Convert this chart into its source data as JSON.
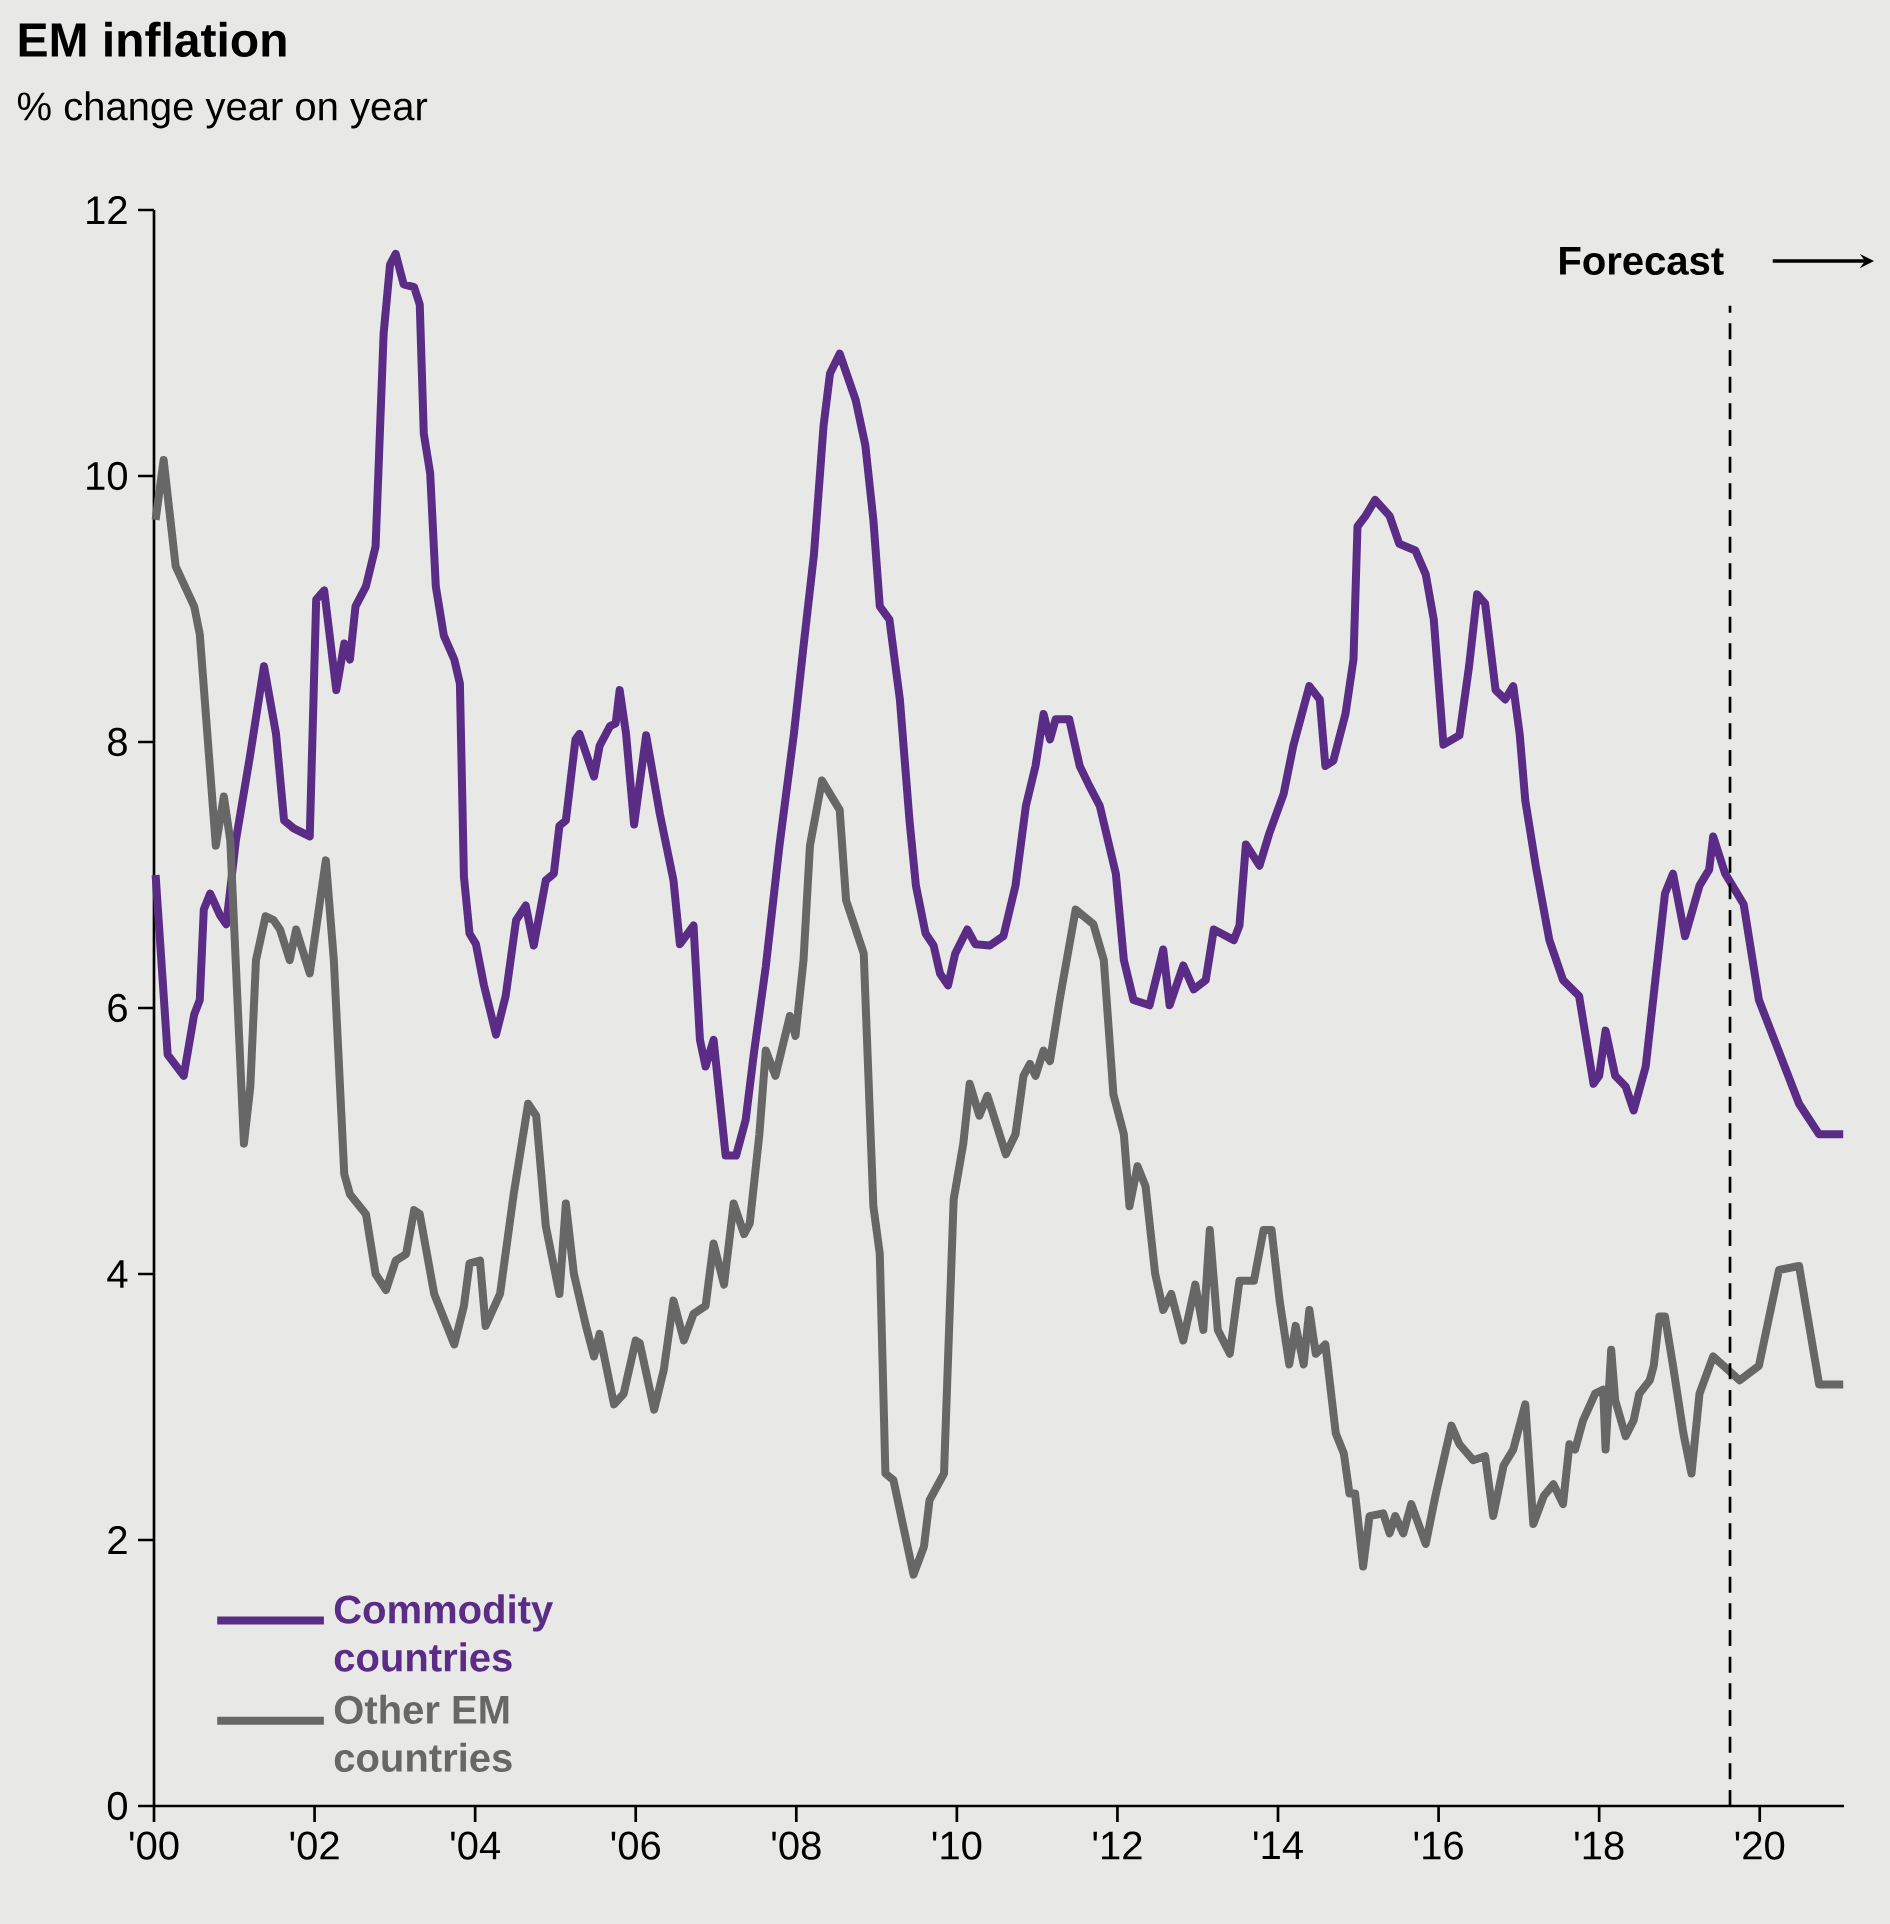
{
  "chart_data": {
    "type": "line",
    "title": "EM inflation",
    "subtitle": "% change year on year",
    "xlim": [
      2000,
      2021.05
    ],
    "xticks": [
      {
        "value": 2000,
        "label": "'00"
      },
      {
        "value": 2002,
        "label": "'02"
      },
      {
        "value": 2004,
        "label": "'04"
      },
      {
        "value": 2006,
        "label": "'06"
      },
      {
        "value": 2008,
        "label": "'08"
      },
      {
        "value": 2010,
        "label": "'10"
      },
      {
        "value": 2012,
        "label": "'12"
      },
      {
        "value": 2014,
        "label": "'14"
      },
      {
        "value": 2016,
        "label": "'16"
      },
      {
        "value": 2018,
        "label": "'18"
      },
      {
        "value": 2020,
        "label": "'20"
      }
    ],
    "ylim": [
      0,
      12
    ],
    "yticks": [
      0,
      2,
      4,
      6,
      8,
      10,
      12
    ],
    "legend": "bottom left",
    "ref_lines": [
      {
        "axis": "x",
        "value": 2019.63,
        "label": "Forecast",
        "line_style": "dashed",
        "color": "#000000"
      }
    ],
    "series": [
      {
        "name": "Commodity countries",
        "color": "#5b2c86",
        "x": [
          2000.02,
          2000.12,
          2000.17,
          2000.37,
          2000.5,
          2000.57,
          2000.62,
          2000.7,
          2000.82,
          2000.9,
          2001.02,
          2001.2,
          2001.37,
          2001.52,
          2001.62,
          2001.74,
          2001.94,
          2002.02,
          2002.12,
          2002.27,
          2002.37,
          2002.44,
          2002.51,
          2002.64,
          2002.76,
          2002.86,
          2002.94,
          2003.01,
          2003.11,
          2003.24,
          2003.31,
          2003.36,
          2003.44,
          2003.51,
          2003.61,
          2003.74,
          2003.81,
          2003.86,
          2003.93,
          2004.01,
          2004.11,
          2004.26,
          2004.38,
          2004.51,
          2004.63,
          2004.73,
          2004.88,
          2004.98,
          2005.05,
          2005.13,
          2005.25,
          2005.3,
          2005.48,
          2005.55,
          2005.68,
          2005.75,
          2005.8,
          2005.88,
          2005.98,
          2006.13,
          2006.3,
          2006.47,
          2006.55,
          2006.72,
          2006.8,
          2006.87,
          2006.97,
          2007.12,
          2007.25,
          2007.37,
          2007.47,
          2007.62,
          2007.79,
          2007.97,
          2008.09,
          2008.22,
          2008.34,
          2008.42,
          2008.54,
          2008.74,
          2008.86,
          2008.96,
          2009.04,
          2009.16,
          2009.29,
          2009.41,
          2009.49,
          2009.61,
          2009.71,
          2009.79,
          2009.89,
          2009.98,
          2010.13,
          2010.23,
          2010.41,
          2010.58,
          2010.73,
          2010.86,
          2010.98,
          2011.08,
          2011.16,
          2011.23,
          2011.4,
          2011.53,
          2011.65,
          2011.78,
          2011.98,
          2012.08,
          2012.2,
          2012.4,
          2012.57,
          2012.65,
          2012.82,
          2012.95,
          2013.1,
          2013.2,
          2013.45,
          2013.52,
          2013.6,
          2013.77,
          2013.89,
          2014.07,
          2014.19,
          2014.39,
          2014.52,
          2014.59,
          2014.69,
          2014.84,
          2014.94,
          2014.99,
          2015.09,
          2015.21,
          2015.39,
          2015.51,
          2015.71,
          2015.84,
          2015.94,
          2016.06,
          2016.26,
          2016.38,
          2016.48,
          2016.58,
          2016.71,
          2016.83,
          2016.93,
          2017.01,
          2017.08,
          2017.21,
          2017.38,
          2017.55,
          2017.75,
          2017.93,
          2018.0,
          2018.08,
          2018.2,
          2018.33,
          2018.43,
          2018.58,
          2018.7,
          2018.82,
          2018.92,
          2019.07,
          2019.25,
          2019.37,
          2019.42,
          2019.57,
          2019.8,
          2019.99,
          2020.49,
          2020.74,
          2021.04
        ],
        "values": [
          7.0,
          6.1,
          5.65,
          5.49,
          5.95,
          6.06,
          6.74,
          6.86,
          6.7,
          6.63,
          7.26,
          7.91,
          8.57,
          8.06,
          7.41,
          7.35,
          7.29,
          9.07,
          9.14,
          8.39,
          8.74,
          8.62,
          9.02,
          9.17,
          9.47,
          11.07,
          11.59,
          11.67,
          11.44,
          11.42,
          11.29,
          10.32,
          10.02,
          9.17,
          8.8,
          8.62,
          8.44,
          6.99,
          6.56,
          6.48,
          6.17,
          5.8,
          6.09,
          6.66,
          6.77,
          6.47,
          6.96,
          7.01,
          7.37,
          7.41,
          8.02,
          8.06,
          7.74,
          7.97,
          8.12,
          8.14,
          8.39,
          8.06,
          7.38,
          8.05,
          7.46,
          6.96,
          6.48,
          6.62,
          5.76,
          5.56,
          5.76,
          4.89,
          4.89,
          5.16,
          5.65,
          6.31,
          7.22,
          8.06,
          8.72,
          9.41,
          10.38,
          10.77,
          10.92,
          10.57,
          10.23,
          9.67,
          9.02,
          8.92,
          8.32,
          7.41,
          6.92,
          6.56,
          6.47,
          6.26,
          6.17,
          6.41,
          6.59,
          6.48,
          6.47,
          6.54,
          6.92,
          7.52,
          7.82,
          8.21,
          8.02,
          8.17,
          8.17,
          7.82,
          7.67,
          7.52,
          7.01,
          6.36,
          6.06,
          6.02,
          6.44,
          6.02,
          6.32,
          6.14,
          6.21,
          6.59,
          6.51,
          6.62,
          7.23,
          7.07,
          7.31,
          7.61,
          7.97,
          8.42,
          8.32,
          7.82,
          7.86,
          8.21,
          8.62,
          9.62,
          9.7,
          9.82,
          9.7,
          9.49,
          9.44,
          9.26,
          8.92,
          7.98,
          8.05,
          8.57,
          9.11,
          9.04,
          8.39,
          8.32,
          8.42,
          8.06,
          7.56,
          7.07,
          6.51,
          6.21,
          6.09,
          5.43,
          5.49,
          5.83,
          5.49,
          5.41,
          5.23,
          5.56,
          6.21,
          6.86,
          7.01,
          6.54,
          6.92,
          7.04,
          7.29,
          7.01,
          6.78,
          6.06,
          5.28,
          5.05,
          5.05
        ]
      },
      {
        "name": "Other EM countries",
        "color": "#676767",
        "x": [
          2000.02,
          2000.12,
          2000.27,
          2000.5,
          2000.57,
          2000.77,
          2000.87,
          2000.95,
          2001.12,
          2001.2,
          2001.27,
          2001.39,
          2001.49,
          2001.57,
          2001.69,
          2001.77,
          2001.94,
          2002.14,
          2002.24,
          2002.37,
          2002.44,
          2002.64,
          2002.76,
          2002.89,
          2003.01,
          2003.14,
          2003.24,
          2003.31,
          2003.49,
          2003.74,
          2003.86,
          2003.93,
          2004.06,
          2004.13,
          2004.31,
          2004.48,
          2004.66,
          2004.76,
          2004.88,
          2005.05,
          2005.13,
          2005.23,
          2005.38,
          2005.48,
          2005.55,
          2005.73,
          2005.85,
          2006.0,
          2006.05,
          2006.23,
          2006.35,
          2006.47,
          2006.6,
          2006.72,
          2006.87,
          2006.97,
          2007.1,
          2007.22,
          2007.35,
          2007.42,
          2007.54,
          2007.62,
          2007.74,
          2007.92,
          2007.99,
          2008.09,
          2008.17,
          2008.32,
          2008.54,
          2008.62,
          2008.84,
          2008.96,
          2009.04,
          2009.11,
          2009.21,
          2009.46,
          2009.59,
          2009.66,
          2009.84,
          2009.96,
          2010.08,
          2010.16,
          2010.28,
          2010.38,
          2010.61,
          2010.73,
          2010.83,
          2010.91,
          2010.98,
          2011.08,
          2011.16,
          2011.28,
          2011.48,
          2011.7,
          2011.83,
          2011.95,
          2012.08,
          2012.15,
          2012.25,
          2012.35,
          2012.47,
          2012.57,
          2012.67,
          2012.82,
          2012.97,
          2013.07,
          2013.15,
          2013.25,
          2013.4,
          2013.52,
          2013.7,
          2013.82,
          2013.92,
          2014.02,
          2014.14,
          2014.22,
          2014.32,
          2014.39,
          2014.47,
          2014.59,
          2014.72,
          2014.82,
          2014.89,
          2014.96,
          2015.06,
          2015.14,
          2015.31,
          2015.39,
          2015.46,
          2015.56,
          2015.66,
          2015.84,
          2015.96,
          2016.16,
          2016.26,
          2016.43,
          2016.58,
          2016.68,
          2016.81,
          2016.93,
          2017.08,
          2017.18,
          2017.31,
          2017.43,
          2017.55,
          2017.63,
          2017.7,
          2017.8,
          2017.95,
          2018.05,
          2018.08,
          2018.15,
          2018.2,
          2018.33,
          2018.43,
          2018.5,
          2018.63,
          2018.68,
          2018.75,
          2018.82,
          2018.92,
          2019.05,
          2019.15,
          2019.25,
          2019.42,
          2019.75,
          2019.99,
          2020.24,
          2020.49,
          2020.74,
          2021.04
        ],
        "values": [
          9.67,
          10.12,
          9.32,
          9.02,
          8.81,
          7.22,
          7.59,
          7.26,
          4.98,
          5.41,
          6.36,
          6.69,
          6.66,
          6.59,
          6.36,
          6.59,
          6.26,
          7.11,
          6.36,
          4.75,
          4.6,
          4.45,
          4.0,
          3.88,
          4.1,
          4.15,
          4.48,
          4.45,
          3.85,
          3.47,
          3.76,
          4.08,
          4.1,
          3.61,
          3.85,
          4.6,
          5.28,
          5.19,
          4.36,
          3.85,
          4.53,
          4.0,
          3.61,
          3.38,
          3.55,
          3.02,
          3.1,
          3.5,
          3.48,
          2.98,
          3.28,
          3.8,
          3.5,
          3.7,
          3.76,
          4.23,
          3.92,
          4.53,
          4.3,
          4.38,
          5.05,
          5.68,
          5.49,
          5.94,
          5.79,
          6.36,
          7.22,
          7.71,
          7.49,
          6.81,
          6.41,
          4.51,
          4.15,
          2.5,
          2.45,
          1.74,
          1.95,
          2.3,
          2.5,
          4.56,
          4.98,
          5.43,
          5.19,
          5.34,
          4.9,
          5.05,
          5.49,
          5.58,
          5.49,
          5.68,
          5.6,
          6.06,
          6.74,
          6.63,
          6.36,
          5.35,
          5.05,
          4.51,
          4.81,
          4.66,
          4.0,
          3.73,
          3.85,
          3.5,
          3.92,
          3.58,
          4.33,
          3.58,
          3.4,
          3.95,
          3.95,
          4.33,
          4.33,
          3.8,
          3.32,
          3.61,
          3.32,
          3.73,
          3.4,
          3.47,
          2.8,
          2.65,
          2.35,
          2.35,
          1.8,
          2.18,
          2.2,
          2.05,
          2.18,
          2.05,
          2.27,
          1.97,
          2.33,
          2.86,
          2.72,
          2.6,
          2.63,
          2.18,
          2.56,
          2.68,
          3.02,
          2.12,
          2.33,
          2.42,
          2.27,
          2.72,
          2.68,
          2.9,
          3.1,
          3.13,
          2.68,
          3.43,
          3.05,
          2.78,
          2.9,
          3.1,
          3.2,
          3.31,
          3.68,
          3.68,
          3.31,
          2.8,
          2.5,
          3.1,
          3.38,
          3.2,
          3.31,
          4.03,
          4.06,
          3.17,
          3.17
        ]
      }
    ]
  }
}
